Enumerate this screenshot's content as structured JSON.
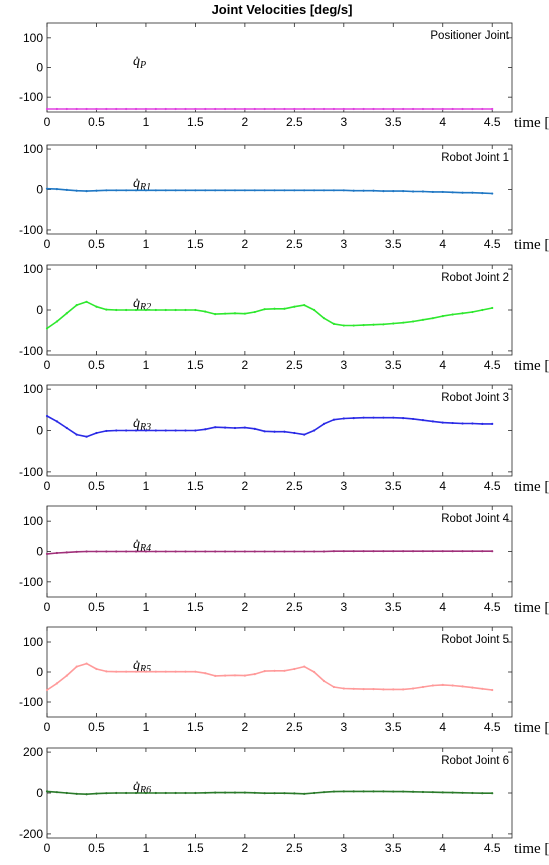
{
  "figure": {
    "title": "Joint Velocities [deg/s]"
  },
  "chart_data": [
    {
      "type": "line",
      "panel_label": "Positioner Joint",
      "series_symbol": "q̇",
      "series_subscript": "P",
      "color": "#e040e0",
      "xlabel": "time [s]",
      "xlim": [
        0,
        4.7
      ],
      "ylim": [
        -150,
        150
      ],
      "xticks": [
        "0",
        "0.5",
        "1",
        "1.5",
        "2",
        "2.5",
        "3",
        "3.5",
        "4",
        "4.5"
      ],
      "yticks": [
        "100",
        "0",
        "-100"
      ],
      "yticks_values": [
        100,
        0,
        -100
      ],
      "x": [
        0,
        0.1,
        0.2,
        0.3,
        0.4,
        0.5,
        0.6,
        0.7,
        0.8,
        0.9,
        1.0,
        1.1,
        1.2,
        1.3,
        1.4,
        1.5,
        1.6,
        1.7,
        1.8,
        1.9,
        2.0,
        2.1,
        2.2,
        2.3,
        2.4,
        2.5,
        2.6,
        2.7,
        2.8,
        2.9,
        3.0,
        3.1,
        3.2,
        3.3,
        3.4,
        3.5,
        3.6,
        3.7,
        3.8,
        3.9,
        4.0,
        4.1,
        4.2,
        4.3,
        4.4,
        4.5
      ],
      "y": [
        -140,
        -140,
        -140,
        -140,
        -140,
        -140,
        -140,
        -140,
        -140,
        -140,
        -140,
        -140,
        -140,
        -140,
        -140,
        -140,
        -140,
        -140,
        -140,
        -140,
        -140,
        -140,
        -140,
        -140,
        -140,
        -140,
        -140,
        -140,
        -140,
        -140,
        -140,
        -140,
        -140,
        -140,
        -140,
        -140,
        -140,
        -140,
        -140,
        -140,
        -140,
        -140,
        -140,
        -140,
        -140,
        -140
      ]
    },
    {
      "type": "line",
      "panel_label": "Robot Joint 1",
      "series_symbol": "q̇",
      "series_subscript": "R1",
      "color": "#1f77c4",
      "xlabel": "time [s]",
      "xlim": [
        0,
        4.7
      ],
      "ylim": [
        -110,
        110
      ],
      "xticks": [
        "0",
        "0.5",
        "1",
        "1.5",
        "2",
        "2.5",
        "3",
        "3.5",
        "4",
        "4.5"
      ],
      "yticks": [
        "100",
        "0",
        "-100"
      ],
      "yticks_values": [
        100,
        0,
        -100
      ],
      "x": [
        0,
        0.1,
        0.2,
        0.3,
        0.4,
        0.5,
        0.6,
        0.7,
        0.8,
        0.9,
        1.0,
        1.1,
        1.2,
        1.3,
        1.4,
        1.5,
        1.6,
        1.7,
        1.8,
        1.9,
        2.0,
        2.1,
        2.2,
        2.3,
        2.4,
        2.5,
        2.6,
        2.7,
        2.8,
        2.9,
        3.0,
        3.1,
        3.2,
        3.3,
        3.4,
        3.5,
        3.6,
        3.7,
        3.8,
        3.9,
        4.0,
        4.1,
        4.2,
        4.3,
        4.4,
        4.5
      ],
      "y": [
        2,
        1,
        -1,
        -3,
        -4,
        -3,
        -2,
        -2,
        -2,
        -2,
        -2,
        -2,
        -2,
        -2,
        -2,
        -2,
        -2,
        -2,
        -2,
        -2,
        -2,
        -2,
        -2,
        -2,
        -2,
        -2,
        -2,
        -2,
        -2,
        -2,
        -2,
        -3,
        -3,
        -3,
        -4,
        -4,
        -4,
        -5,
        -5,
        -6,
        -6,
        -7,
        -8,
        -8,
        -9,
        -10
      ]
    },
    {
      "type": "line",
      "panel_label": "Robot Joint 2",
      "series_symbol": "q̇",
      "series_subscript": "R2",
      "color": "#2ee82e",
      "xlabel": "time [s]",
      "xlim": [
        0,
        4.7
      ],
      "ylim": [
        -110,
        110
      ],
      "xticks": [
        "0",
        "0.5",
        "1",
        "1.5",
        "2",
        "2.5",
        "3",
        "3.5",
        "4",
        "4.5"
      ],
      "yticks": [
        "100",
        "0",
        "-100"
      ],
      "yticks_values": [
        100,
        0,
        -100
      ],
      "x": [
        0,
        0.1,
        0.2,
        0.3,
        0.4,
        0.5,
        0.6,
        0.7,
        0.8,
        0.9,
        1.0,
        1.1,
        1.2,
        1.3,
        1.4,
        1.5,
        1.6,
        1.7,
        1.8,
        1.9,
        2.0,
        2.1,
        2.2,
        2.3,
        2.4,
        2.5,
        2.6,
        2.7,
        2.8,
        2.9,
        3.0,
        3.1,
        3.2,
        3.3,
        3.4,
        3.5,
        3.6,
        3.7,
        3.8,
        3.9,
        4.0,
        4.1,
        4.2,
        4.3,
        4.4,
        4.5
      ],
      "y": [
        -45,
        -28,
        -8,
        12,
        20,
        8,
        1,
        0,
        0,
        0,
        0,
        0,
        0,
        0,
        0,
        0,
        -4,
        -10,
        -9,
        -8,
        -9,
        -5,
        2,
        3,
        3,
        8,
        12,
        0,
        -20,
        -34,
        -38,
        -38,
        -37,
        -36,
        -35,
        -33,
        -31,
        -28,
        -24,
        -20,
        -15,
        -11,
        -8,
        -5,
        0,
        5
      ]
    },
    {
      "type": "line",
      "panel_label": "Robot Joint 3",
      "series_symbol": "q̇",
      "series_subscript": "R3",
      "color": "#2a2ae6",
      "xlabel": "time [s]",
      "xlim": [
        0,
        4.7
      ],
      "ylim": [
        -110,
        110
      ],
      "xticks": [
        "0",
        "0.5",
        "1",
        "1.5",
        "2",
        "2.5",
        "3",
        "3.5",
        "4",
        "4.5"
      ],
      "yticks": [
        "100",
        "0",
        "-100"
      ],
      "yticks_values": [
        100,
        0,
        -100
      ],
      "x": [
        0,
        0.1,
        0.2,
        0.3,
        0.4,
        0.5,
        0.6,
        0.7,
        0.8,
        0.9,
        1.0,
        1.1,
        1.2,
        1.3,
        1.4,
        1.5,
        1.6,
        1.7,
        1.8,
        1.9,
        2.0,
        2.1,
        2.2,
        2.3,
        2.4,
        2.5,
        2.6,
        2.7,
        2.8,
        2.9,
        3.0,
        3.1,
        3.2,
        3.3,
        3.4,
        3.5,
        3.6,
        3.7,
        3.8,
        3.9,
        4.0,
        4.1,
        4.2,
        4.3,
        4.4,
        4.5
      ],
      "y": [
        35,
        22,
        6,
        -10,
        -15,
        -6,
        -1,
        0,
        0,
        0,
        0,
        0,
        0,
        0,
        0,
        0,
        3,
        8,
        7,
        6,
        7,
        4,
        -2,
        -3,
        -3,
        -6,
        -10,
        0,
        16,
        26,
        29,
        30,
        31,
        31,
        31,
        31,
        30,
        28,
        25,
        22,
        19,
        18,
        17,
        17,
        16,
        16
      ]
    },
    {
      "type": "line",
      "panel_label": "Robot Joint 4",
      "series_symbol": "q̇",
      "series_subscript": "R4",
      "color": "#a0307a",
      "xlabel": "time [s]",
      "xlim": [
        0,
        4.7
      ],
      "ylim": [
        -150,
        150
      ],
      "xticks": [
        "0",
        "0.5",
        "1",
        "1.5",
        "2",
        "2.5",
        "3",
        "3.5",
        "4",
        "4.5"
      ],
      "yticks": [
        "100",
        "0",
        "-100"
      ],
      "yticks_values": [
        100,
        0,
        -100
      ],
      "x": [
        0,
        0.1,
        0.2,
        0.3,
        0.4,
        0.5,
        0.6,
        0.7,
        0.8,
        0.9,
        1.0,
        1.1,
        1.2,
        1.3,
        1.4,
        1.5,
        1.6,
        1.7,
        1.8,
        1.9,
        2.0,
        2.1,
        2.2,
        2.3,
        2.4,
        2.5,
        2.6,
        2.7,
        2.8,
        2.9,
        3.0,
        3.1,
        3.2,
        3.3,
        3.4,
        3.5,
        3.6,
        3.7,
        3.8,
        3.9,
        4.0,
        4.1,
        4.2,
        4.3,
        4.4,
        4.5
      ],
      "y": [
        -8,
        -5,
        -3,
        -1,
        0,
        0,
        0,
        0,
        0,
        0,
        0,
        0,
        0,
        0,
        0,
        0,
        0,
        0,
        0,
        0,
        0,
        0,
        0,
        0,
        0,
        0,
        0,
        0,
        0,
        1,
        1,
        1,
        1,
        1,
        1,
        1,
        1,
        1,
        1,
        1,
        1,
        1,
        1,
        1,
        1,
        1
      ]
    },
    {
      "type": "line",
      "panel_label": "Robot Joint 5",
      "series_symbol": "q̇",
      "series_subscript": "R5",
      "color": "#ff9a9a",
      "xlabel": "time [s]",
      "xlim": [
        0,
        4.7
      ],
      "ylim": [
        -150,
        150
      ],
      "xticks": [
        "0",
        "0.5",
        "1",
        "1.5",
        "2",
        "2.5",
        "3",
        "3.5",
        "4",
        "4.5"
      ],
      "yticks": [
        "100",
        "0",
        "-100"
      ],
      "yticks_values": [
        100,
        0,
        -100
      ],
      "x": [
        0,
        0.1,
        0.2,
        0.3,
        0.4,
        0.5,
        0.6,
        0.7,
        0.8,
        0.9,
        1.0,
        1.1,
        1.2,
        1.3,
        1.4,
        1.5,
        1.6,
        1.7,
        1.8,
        1.9,
        2.0,
        2.1,
        2.2,
        2.3,
        2.4,
        2.5,
        2.6,
        2.7,
        2.8,
        2.9,
        3.0,
        3.1,
        3.2,
        3.3,
        3.4,
        3.5,
        3.6,
        3.7,
        3.8,
        3.9,
        4.0,
        4.1,
        4.2,
        4.3,
        4.4,
        4.5
      ],
      "y": [
        -60,
        -38,
        -12,
        18,
        28,
        10,
        2,
        1,
        1,
        1,
        1,
        1,
        1,
        1,
        1,
        1,
        -4,
        -13,
        -12,
        -11,
        -12,
        -7,
        3,
        4,
        4,
        10,
        18,
        0,
        -30,
        -50,
        -55,
        -56,
        -57,
        -57,
        -58,
        -58,
        -58,
        -55,
        -50,
        -45,
        -43,
        -45,
        -48,
        -52,
        -56,
        -60
      ]
    },
    {
      "type": "line",
      "panel_label": "Robot Joint 6",
      "series_symbol": "q̇",
      "series_subscript": "R6",
      "color": "#2a7a2a",
      "xlabel": "time [s]",
      "xlim": [
        0,
        4.7
      ],
      "ylim": [
        -220,
        220
      ],
      "xticks": [
        "0",
        "0.5",
        "1",
        "1.5",
        "2",
        "2.5",
        "3",
        "3.5",
        "4",
        "4.5"
      ],
      "yticks": [
        "200",
        "0",
        "-200"
      ],
      "yticks_values": [
        200,
        0,
        -200
      ],
      "x": [
        0,
        0.1,
        0.2,
        0.3,
        0.4,
        0.5,
        0.6,
        0.7,
        0.8,
        0.9,
        1.0,
        1.1,
        1.2,
        1.3,
        1.4,
        1.5,
        1.6,
        1.7,
        1.8,
        1.9,
        2.0,
        2.1,
        2.2,
        2.3,
        2.4,
        2.5,
        2.6,
        2.7,
        2.8,
        2.9,
        3.0,
        3.1,
        3.2,
        3.3,
        3.4,
        3.5,
        3.6,
        3.7,
        3.8,
        3.9,
        4.0,
        4.1,
        4.2,
        4.3,
        4.4,
        4.5
      ],
      "y": [
        8,
        4,
        0,
        -4,
        -6,
        -3,
        -1,
        0,
        0,
        0,
        0,
        0,
        0,
        0,
        0,
        0,
        1,
        2,
        2,
        2,
        2,
        1,
        -1,
        -1,
        -1,
        -2,
        -4,
        0,
        4,
        7,
        8,
        8,
        8,
        8,
        8,
        7,
        7,
        6,
        5,
        4,
        3,
        2,
        1,
        0,
        -1,
        -1
      ]
    }
  ]
}
